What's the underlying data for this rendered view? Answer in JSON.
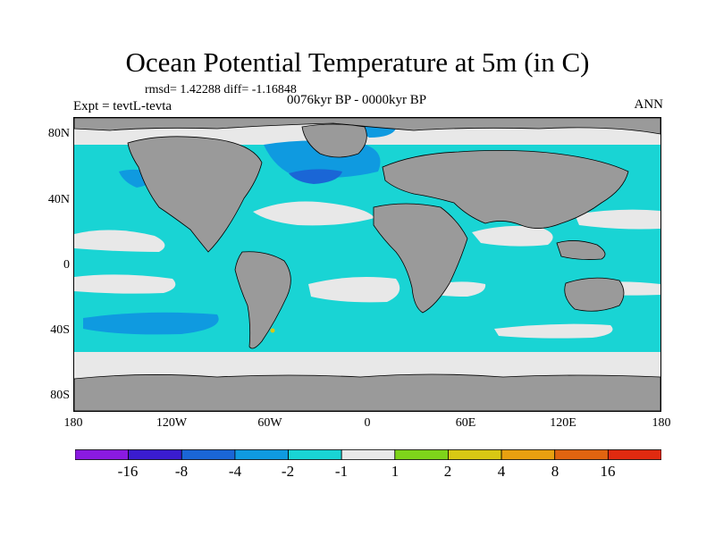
{
  "header": {
    "title": "Ocean Potential Temperature at 5m (in C)",
    "stats": "rmsd= 1.42288 diff= -1.16848",
    "experiment": "Expt = tevtL-tevta",
    "period": "0076kyr BP - 0000kyr BP",
    "season": "ANN"
  },
  "axes": {
    "lat_labels": [
      "80N",
      "40N",
      "0",
      "40S",
      "80S"
    ],
    "lon_labels": [
      "180",
      "120W",
      "60W",
      "0",
      "60E",
      "120E",
      "180"
    ]
  },
  "colorbar": {
    "labels": [
      "-16",
      "-8",
      "-4",
      "-2",
      "-1",
      "1",
      "2",
      "4",
      "8",
      "16"
    ],
    "colors": [
      "#8a1ae0",
      "#3a1ccf",
      "#1a66d6",
      "#0f9ae0",
      "#19d4d4",
      "#e8e8e8",
      "#7ed41a",
      "#d8c814",
      "#e8a010",
      "#e06410",
      "#e02a10"
    ]
  },
  "map_colors": {
    "land": "#9a9a9a",
    "ocean_light_neg": "#19d4d4",
    "ocean_mid_neg": "#0f9ae0",
    "ocean_strong_neg": "#1a66d6",
    "ocean_neutral": "#e8e8e8",
    "ocean_pos": "#d8c814"
  }
}
